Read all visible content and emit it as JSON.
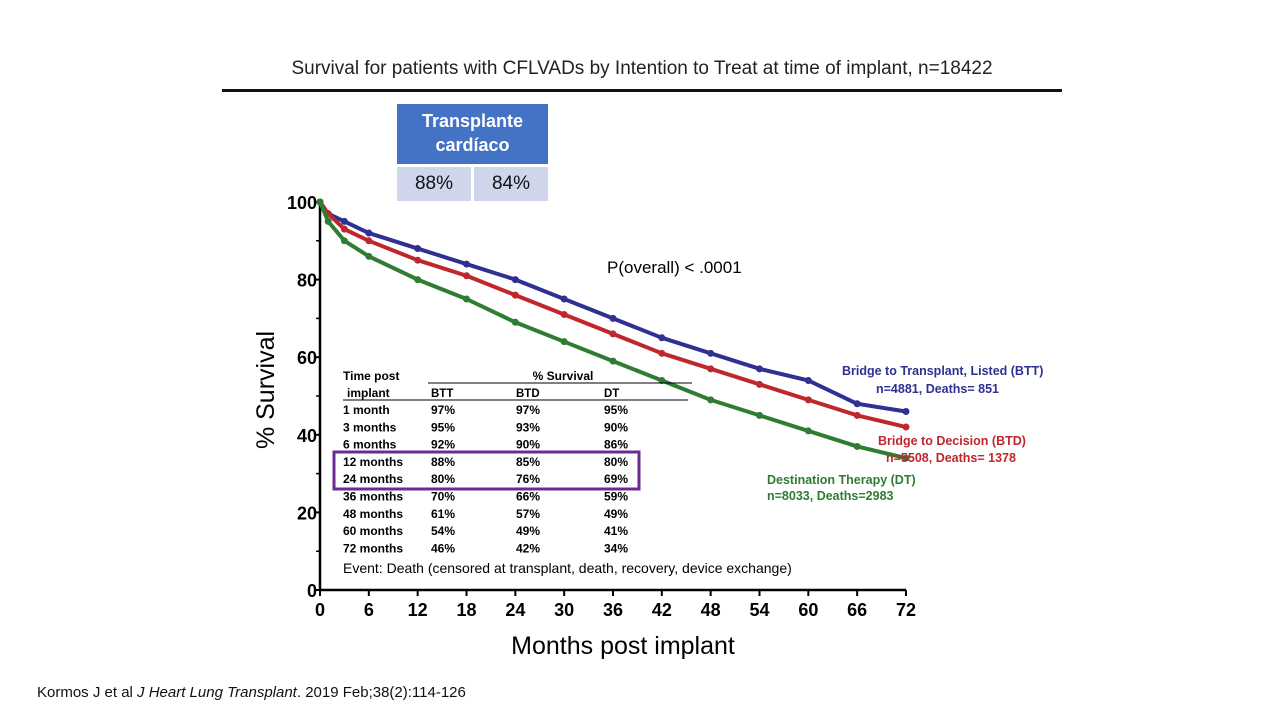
{
  "slide": {
    "title": "Survival for patients with CFLVADs by Intention to Treat at time of implant,  n=18422",
    "citation_prefix": "Kormos J et al ",
    "citation_journal": "J Heart Lung Transplant",
    "citation_suffix": ". 2019 Feb;38(2):114-126"
  },
  "transplant_box": {
    "header": "Transplante cardíaco",
    "values": [
      "88%",
      "84%"
    ],
    "header_color": "#4472c4",
    "cell_color": "#cfd5ea"
  },
  "chart_data": {
    "type": "line",
    "xlabel": "Months post implant",
    "ylabel": "% Survival",
    "xlim": [
      0,
      72
    ],
    "ylim": [
      0,
      100
    ],
    "xticks": [
      0,
      6,
      12,
      18,
      24,
      30,
      36,
      42,
      48,
      54,
      60,
      66,
      72
    ],
    "yticks": [
      0,
      20,
      40,
      60,
      80,
      100
    ],
    "grid": false,
    "pvalue": "P(overall) < .0001",
    "event_note": "Event: Death (censored at transplant, death, recovery, device exchange)",
    "series": [
      {
        "name": "Bridge to Transplant, Listed (BTT)",
        "stats": "n=4881, Deaths= 851",
        "color": "#2e3192",
        "x": [
          0,
          1,
          3,
          6,
          12,
          18,
          24,
          30,
          36,
          42,
          48,
          54,
          60,
          66,
          72
        ],
        "y": [
          100,
          97,
          95,
          92,
          88,
          84,
          80,
          75,
          70,
          65,
          61,
          57,
          54,
          48,
          46
        ]
      },
      {
        "name": "Bridge to Decision (BTD)",
        "stats": "n=5508, Deaths= 1378",
        "color": "#c0272d",
        "x": [
          0,
          1,
          3,
          6,
          12,
          18,
          24,
          30,
          36,
          42,
          48,
          54,
          60,
          66,
          72
        ],
        "y": [
          100,
          97,
          93,
          90,
          85,
          81,
          76,
          71,
          66,
          61,
          57,
          53,
          49,
          45,
          42
        ]
      },
      {
        "name": "Destination Therapy (DT)",
        "stats": "n=8033, Deaths=2983",
        "color": "#2e7d32",
        "x": [
          0,
          1,
          3,
          6,
          12,
          18,
          24,
          30,
          36,
          42,
          48,
          54,
          60,
          66,
          72
        ],
        "y": [
          100,
          95,
          90,
          86,
          80,
          75,
          69,
          64,
          59,
          54,
          49,
          45,
          41,
          37,
          34
        ]
      }
    ],
    "table": {
      "header_top": "% Survival",
      "row_header_line1": "Time post",
      "row_header_line2": "implant",
      "columns": [
        "BTT",
        "BTD",
        "DT"
      ],
      "rows": [
        {
          "label": "1 month",
          "values": [
            "97%",
            "97%",
            "95%"
          ]
        },
        {
          "label": "3 months",
          "values": [
            "95%",
            "93%",
            "90%"
          ]
        },
        {
          "label": "6 months",
          "values": [
            "92%",
            "90%",
            "86%"
          ]
        },
        {
          "label": "12 months",
          "values": [
            "88%",
            "85%",
            "80%"
          ]
        },
        {
          "label": "24 months",
          "values": [
            "80%",
            "76%",
            "69%"
          ]
        },
        {
          "label": "36 months",
          "values": [
            "70%",
            "66%",
            "59%"
          ]
        },
        {
          "label": "48 months",
          "values": [
            "61%",
            "57%",
            "49%"
          ]
        },
        {
          "label": "60 months",
          "values": [
            "54%",
            "49%",
            "41%"
          ]
        },
        {
          "label": "72 months",
          "values": [
            "46%",
            "42%",
            "34%"
          ]
        }
      ],
      "highlight_color": "#6a2c91"
    }
  }
}
